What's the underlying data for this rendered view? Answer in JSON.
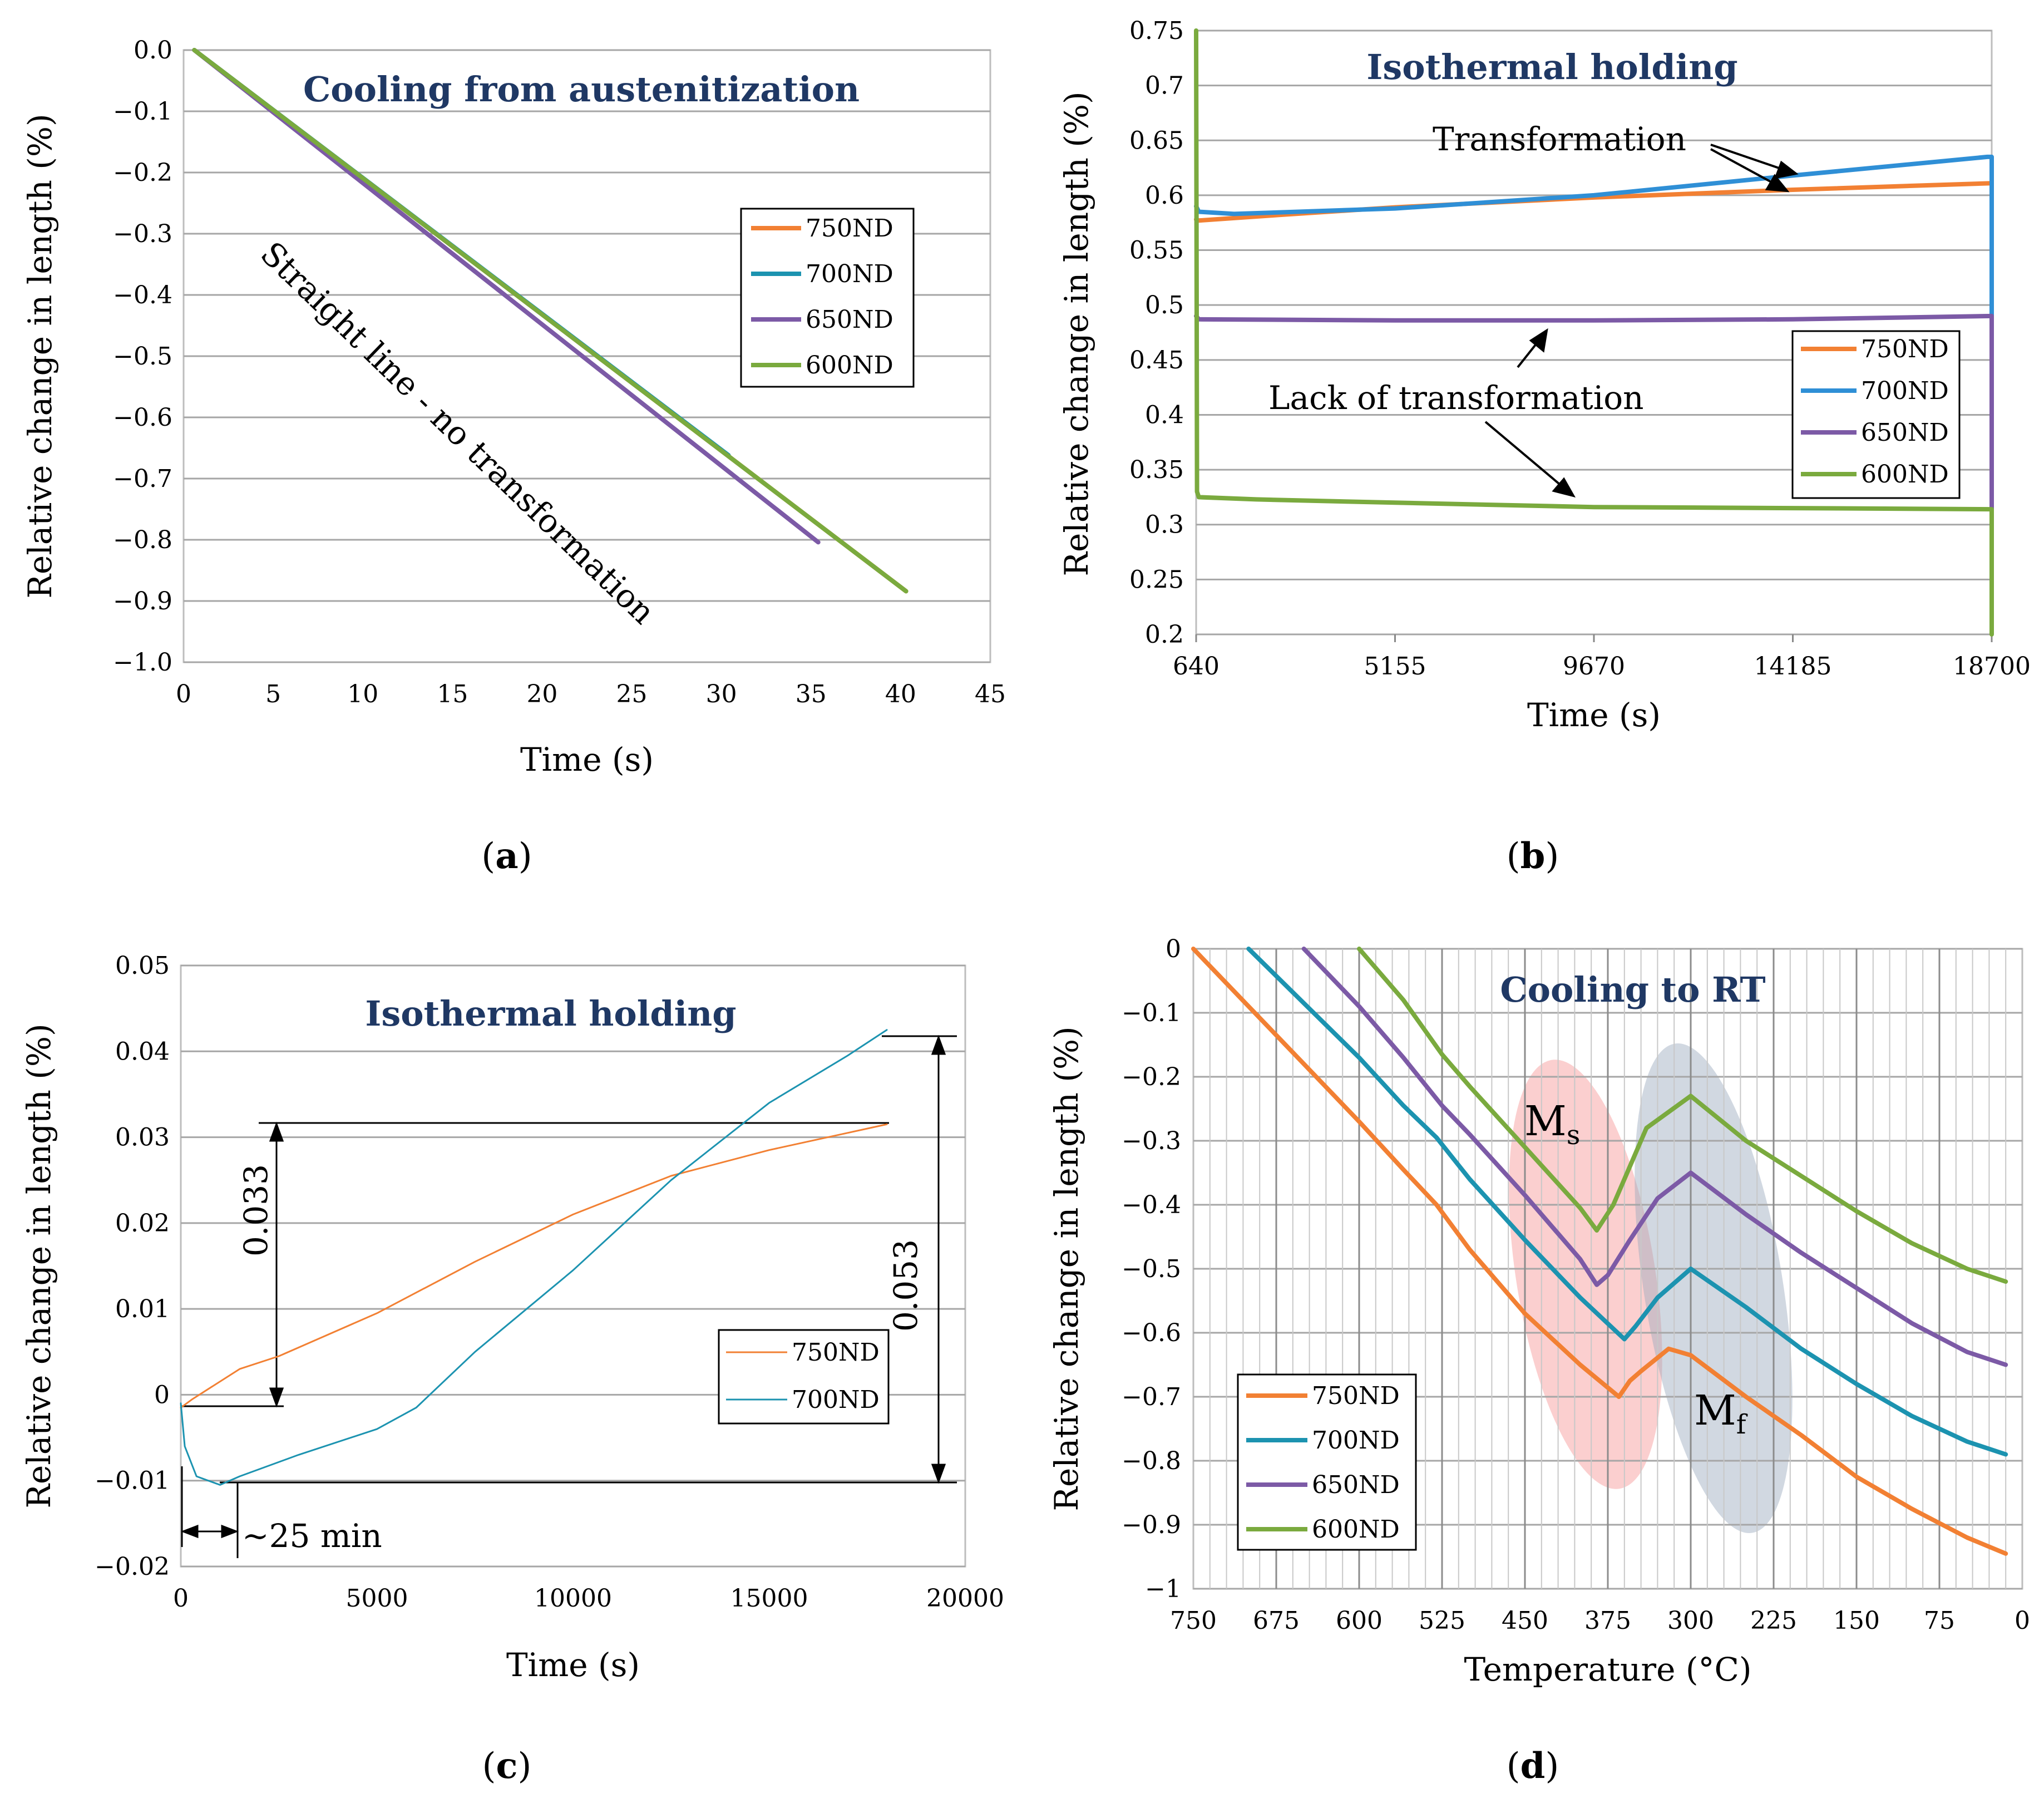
{
  "chart_data": [
    {
      "panel_label": "(a)",
      "type": "line",
      "title": "Cooling from austenitization",
      "xlabel": "Time (s)",
      "ylabel": "Relative change in length (%)",
      "xlim": [
        0,
        45
      ],
      "ylim": [
        -1.0,
        0.0
      ],
      "xticks": [
        "0",
        "5",
        "10",
        "15",
        "20",
        "25",
        "30",
        "35",
        "40",
        "45"
      ],
      "yticks": [
        "0.0",
        "−0.1",
        "−0.2",
        "−0.3",
        "−0.4",
        "−0.5",
        "−0.6",
        "−0.7",
        "−0.8",
        "−0.9",
        "−1.0"
      ],
      "legend": [
        "750ND",
        "700ND",
        "650ND",
        "600ND"
      ],
      "annotation": "Straight line - no transformation",
      "series": [
        {
          "name": "750ND",
          "color": "#f28033",
          "x": [
            0.6,
            40.3
          ],
          "y": [
            0.0,
            -0.884
          ]
        },
        {
          "name": "700ND",
          "color": "#1c93b0",
          "x": [
            0.6,
            30.4
          ],
          "y": [
            0.0,
            -0.662
          ]
        },
        {
          "name": "650ND",
          "color": "#7c5aa6",
          "x": [
            0.6,
            35.4
          ],
          "y": [
            0.0,
            -0.804
          ]
        },
        {
          "name": "600ND",
          "color": "#7aaa3e",
          "x": [
            0.6,
            40.3
          ],
          "y": [
            0.0,
            -0.884
          ]
        }
      ]
    },
    {
      "panel_label": "(b)",
      "type": "line",
      "title": "Isothermal holding",
      "xlabel": "Time (s)",
      "ylabel": "Relative change in length (%)",
      "xlim": [
        640,
        18700
      ],
      "ylim": [
        0.2,
        0.75
      ],
      "xticks": [
        "640",
        "5155",
        "9670",
        "14185",
        "18700"
      ],
      "yticks": [
        "0.75",
        "0.7",
        "0.65",
        "0.6",
        "0.55",
        "0.5",
        "0.45",
        "0.4",
        "0.35",
        "0.3",
        "0.25",
        "0.2"
      ],
      "legend": [
        "750ND",
        "700ND",
        "650ND",
        "600ND"
      ],
      "annotations": [
        "Transformation",
        "Lack of transformation"
      ],
      "series": [
        {
          "name": "750ND",
          "color": "#f28033",
          "x": [
            640,
            700,
            2500,
            5155,
            9670,
            14185,
            18700
          ],
          "y": [
            0.578,
            0.577,
            0.582,
            0.589,
            0.598,
            0.605,
            0.611
          ]
        },
        {
          "name": "700ND",
          "color": "#2f8fd6",
          "x": [
            640,
            700,
            1500,
            5155,
            9670,
            14185,
            18600,
            18700,
            18700
          ],
          "y": [
            0.59,
            0.585,
            0.583,
            0.588,
            0.6,
            0.618,
            0.635,
            0.635,
            0.49
          ]
        },
        {
          "name": "650ND",
          "color": "#7c5aa6",
          "x": [
            640,
            700,
            5155,
            9670,
            14185,
            18700,
            18700
          ],
          "y": [
            0.49,
            0.487,
            0.486,
            0.486,
            0.487,
            0.49,
            0.31
          ]
        },
        {
          "name": "600ND",
          "color": "#7aaa3e",
          "x": [
            640,
            660,
            700,
            2000,
            5155,
            9670,
            14185,
            18700,
            18700
          ],
          "y": [
            0.75,
            0.33,
            0.325,
            0.323,
            0.32,
            0.316,
            0.315,
            0.314,
            0.2
          ]
        }
      ]
    },
    {
      "panel_label": "(c)",
      "type": "line",
      "title": "Isothermal holding",
      "xlabel": "Time (s)",
      "ylabel": "Relative change in length (%)",
      "xlim": [
        0,
        20000
      ],
      "ylim": [
        -0.02,
        0.05
      ],
      "xticks": [
        "0",
        "5000",
        "10000",
        "15000",
        "20000"
      ],
      "yticks": [
        "0.05",
        "0.04",
        "0.03",
        "0.02",
        "0.01",
        "0",
        "−0.01",
        "−0.02"
      ],
      "legend": [
        "750ND",
        "700ND"
      ],
      "annotations": [
        "0.033",
        "0.053",
        "~25 min"
      ],
      "series": [
        {
          "name": "750ND",
          "color": "#f28033",
          "x": [
            0,
            300,
            1500,
            2500,
            5000,
            7500,
            10000,
            12500,
            15000,
            18000
          ],
          "y": [
            -0.0015,
            -0.0005,
            0.003,
            0.0045,
            0.0095,
            0.0155,
            0.021,
            0.0255,
            0.0285,
            0.0315
          ]
        },
        {
          "name": "700ND",
          "color": "#1c93b0",
          "x": [
            0,
            100,
            400,
            1000,
            1500,
            3000,
            5000,
            6000,
            7500,
            10000,
            12500,
            15000,
            17000,
            18000
          ],
          "y": [
            -0.001,
            -0.006,
            -0.0095,
            -0.0105,
            -0.0095,
            -0.007,
            -0.004,
            -0.0015,
            0.005,
            0.0145,
            0.025,
            0.034,
            0.0395,
            0.0425
          ]
        }
      ]
    },
    {
      "panel_label": "(d)",
      "type": "line",
      "title": "Cooling to RT",
      "xlabel": "Temperature (°C)",
      "ylabel": "Relative change in length (%)",
      "xlim": [
        750,
        0
      ],
      "ylim": [
        -1.0,
        0.0
      ],
      "xticks": [
        "750",
        "675",
        "600",
        "525",
        "450",
        "375",
        "300",
        "225",
        "150",
        "75",
        "0"
      ],
      "yticks": [
        "0",
        "−0.1",
        "−0.2",
        "−0.3",
        "−0.4",
        "−0.5",
        "−0.6",
        "−0.7",
        "−0.8",
        "−0.9",
        "−1"
      ],
      "legend": [
        "750ND",
        "700ND",
        "650ND",
        "600ND"
      ],
      "annotations": [
        "M",
        "s",
        "M",
        "f"
      ],
      "series": [
        {
          "name": "750ND",
          "color": "#f28033",
          "x": [
            750,
            700,
            650,
            600,
            560,
            530,
            500,
            450,
            400,
            365,
            355,
            345,
            320,
            300,
            250,
            200,
            150,
            100,
            50,
            15
          ],
          "y": [
            0.0,
            -0.09,
            -0.18,
            -0.27,
            -0.345,
            -0.4,
            -0.47,
            -0.57,
            -0.65,
            -0.7,
            -0.675,
            -0.66,
            -0.625,
            -0.635,
            -0.7,
            -0.76,
            -0.825,
            -0.875,
            -0.92,
            -0.945
          ]
        },
        {
          "name": "700ND",
          "color": "#1c93b0",
          "x": [
            700,
            650,
            600,
            560,
            530,
            500,
            450,
            400,
            360,
            350,
            330,
            300,
            250,
            200,
            150,
            100,
            50,
            15
          ],
          "y": [
            0.0,
            -0.085,
            -0.17,
            -0.245,
            -0.295,
            -0.36,
            -0.455,
            -0.545,
            -0.61,
            -0.59,
            -0.545,
            -0.5,
            -0.56,
            -0.625,
            -0.68,
            -0.73,
            -0.77,
            -0.79
          ]
        },
        {
          "name": "650ND",
          "color": "#7c5aa6",
          "x": [
            650,
            600,
            560,
            525,
            500,
            450,
            400,
            385,
            375,
            355,
            330,
            300,
            250,
            200,
            150,
            100,
            50,
            15
          ],
          "y": [
            0.0,
            -0.09,
            -0.17,
            -0.245,
            -0.29,
            -0.385,
            -0.485,
            -0.525,
            -0.51,
            -0.455,
            -0.39,
            -0.35,
            -0.415,
            -0.475,
            -0.53,
            -0.585,
            -0.63,
            -0.65
          ]
        },
        {
          "name": "600ND",
          "color": "#7aaa3e",
          "x": [
            600,
            560,
            525,
            500,
            450,
            400,
            385,
            370,
            340,
            300,
            250,
            200,
            150,
            100,
            50,
            15
          ],
          "y": [
            0.0,
            -0.08,
            -0.165,
            -0.215,
            -0.31,
            -0.405,
            -0.44,
            -0.4,
            -0.28,
            -0.23,
            -0.3,
            -0.355,
            -0.41,
            -0.46,
            -0.5,
            -0.52
          ]
        }
      ]
    }
  ]
}
